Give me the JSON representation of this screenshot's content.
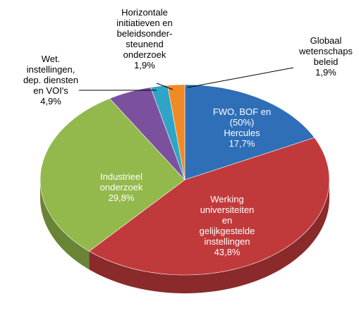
{
  "chart_data": {
    "type": "pie3d",
    "categories": [
      "FWO, BOF en\n(50%)\nHercules",
      "Werking\nuniversiteiten\nen\ngelijkgestelde\ninstellingen",
      "Industrieel\nonderzoek",
      "Wet.\ninstellingen,\ndep. diensten\nen VOI's",
      "Horizontale\ninitiatieven en\nbeleidsonder-\nsteunend\nonderzoek",
      "Globaal\nwetenschaps\nbeleid"
    ],
    "values": [
      17.7,
      43.8,
      29.8,
      4.9,
      1.9,
      1.9
    ],
    "value_labels": [
      "17,7%",
      "43,8%",
      "29,8%",
      "4,9%",
      "1,9%",
      "1,9%"
    ],
    "colors": [
      "#2f6fb7",
      "#c13a3b",
      "#93b84b",
      "#7b519e",
      "#2ea5c6",
      "#f08a24"
    ]
  }
}
